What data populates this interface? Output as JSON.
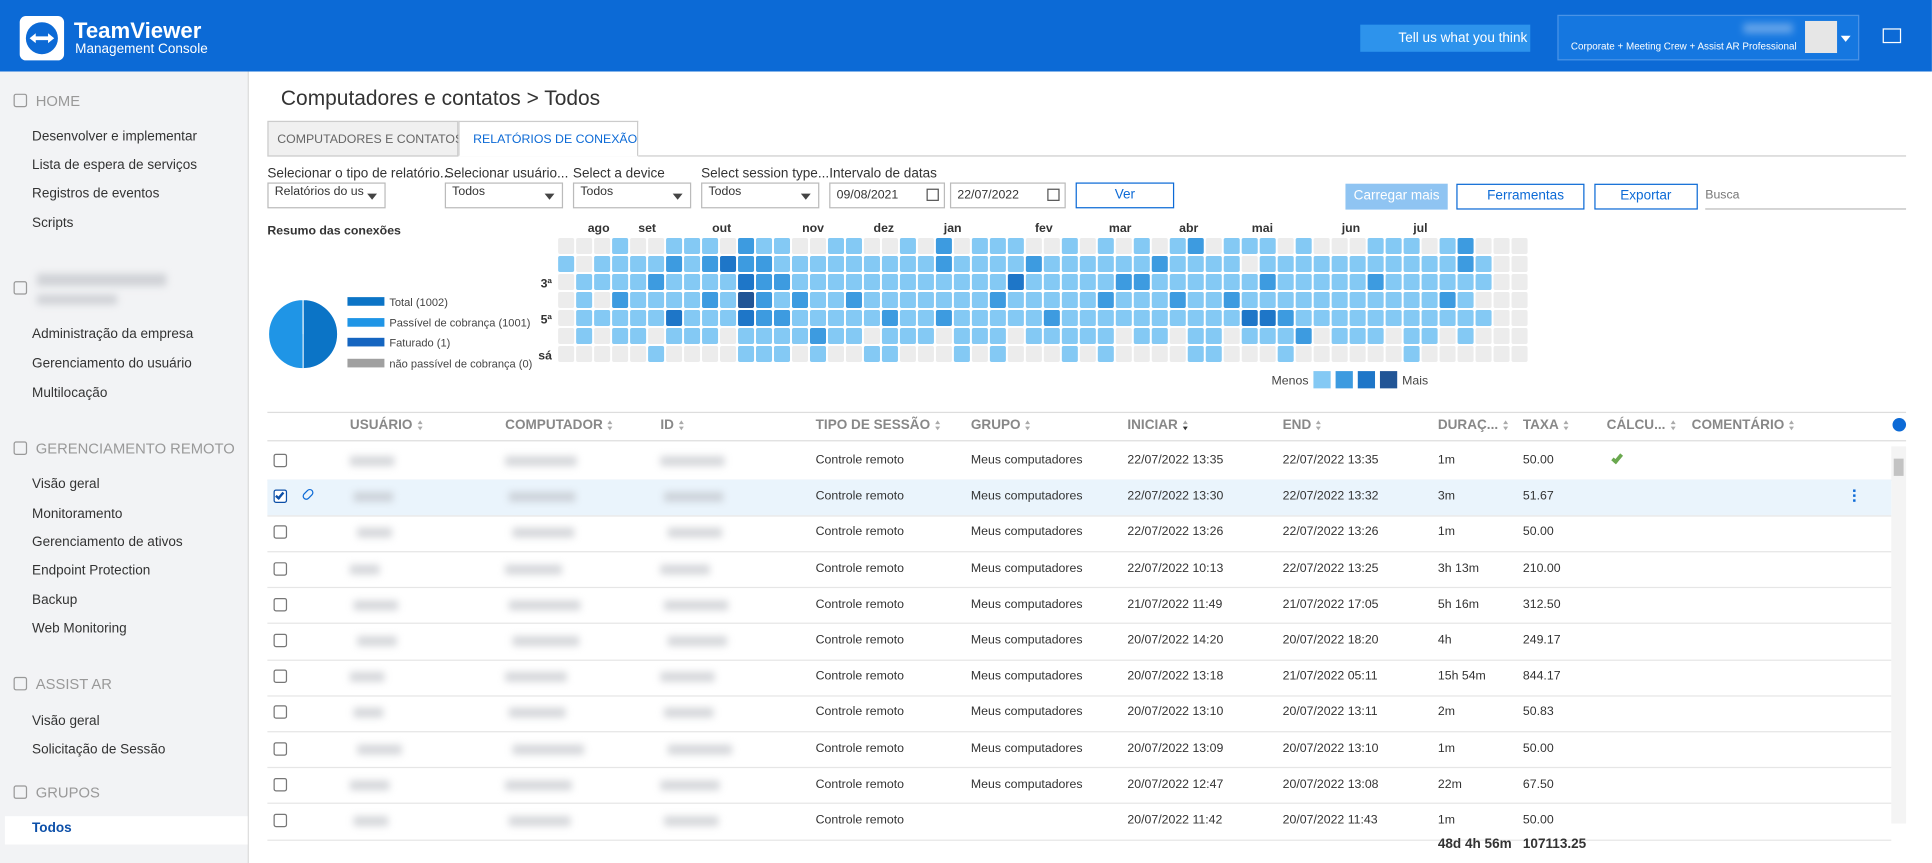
{
  "header": {
    "brand": "TeamViewer",
    "subtitle": "Management Console",
    "feedback": "Tell us what you think",
    "license": "Corporate + Meeting Crew + Assist AR Professional"
  },
  "sidebar": {
    "sections": [
      {
        "title": "HOME",
        "items": [
          "Desenvolver e implementar",
          "Lista de espera de serviços",
          "Registros de eventos",
          "Scripts"
        ]
      },
      {
        "items": [
          "Administração da empresa",
          "Gerenciamento do usuário",
          "Multilocação"
        ]
      },
      {
        "title": "GERENCIAMENTO REMOTO",
        "items": [
          "Visão geral",
          "Monitoramento",
          "Gerenciamento de ativos",
          "Endpoint Protection",
          "Backup",
          "Web Monitoring"
        ]
      },
      {
        "title": "ASSIST AR",
        "items": [
          "Visão geral",
          "Solicitação de Sessão"
        ]
      },
      {
        "title": "GRUPOS",
        "items": [
          "Todos"
        ]
      }
    ]
  },
  "breadcrumb": "Computadores e contatos > Todos",
  "tabs": [
    "COMPUTADORES E CONTATOS",
    "RELATÓRIOS DE CONEXÃO"
  ],
  "filters": [
    {
      "label": "Selecionar o tipo de relatório...",
      "value": "Relatórios do us"
    },
    {
      "label": "Selecionar usuário...",
      "value": "Todos"
    },
    {
      "label": "Select a device",
      "value": "Todos"
    },
    {
      "label": "Select session type...",
      "value": "Todos"
    }
  ],
  "date_range": {
    "label": "Intervalo de datas",
    "from": "09/08/2021",
    "to": "22/07/2022"
  },
  "buttons": {
    "view": "Ver",
    "load_more": "Carregar mais",
    "tools": "Ferramentas",
    "export": "Exportar",
    "search": "Busca"
  },
  "summary_title": "Resumo das conexões",
  "chart_data": [
    {
      "type": "pie",
      "categories": [
        "Total (1002)",
        "Passível de cobrança (1001)",
        "Faturado (1)",
        "não passível de cobrança (0)"
      ],
      "values": [
        1002,
        1001,
        1,
        0
      ],
      "colors": [
        "#0b74c6",
        "#1f95e6",
        "#1565c0",
        "#a0a0a0"
      ]
    },
    {
      "type": "heatmap",
      "categories": [
        "ago",
        "set",
        "out",
        "nov",
        "dez",
        "jan",
        "fev",
        "mar",
        "abr",
        "mai",
        "jun",
        "jul"
      ],
      "y_categories": [
        null,
        null,
        "3ª",
        null,
        "5ª",
        null,
        "sá"
      ],
      "colors": [
        "#ececec",
        "#84c9f4",
        "#3d9be0",
        "#1e76c8",
        "#215596"
      ],
      "legend": {
        "low": "Menos",
        "high": "Mais"
      },
      "values": [
        [
          0,
          0,
          0,
          1,
          0,
          0,
          1,
          1,
          1,
          0,
          2,
          1,
          1,
          0,
          0,
          1,
          1,
          0,
          0,
          1,
          0,
          2,
          0,
          1,
          1,
          1,
          0,
          0,
          1,
          0,
          1,
          0,
          1,
          0,
          1,
          2,
          0,
          1,
          1,
          1,
          0,
          1,
          0,
          0,
          0,
          1,
          1,
          1,
          0,
          1,
          2,
          0,
          0,
          0
        ],
        [
          1,
          0,
          1,
          1,
          1,
          1,
          2,
          1,
          2,
          3,
          2,
          2,
          1,
          1,
          1,
          1,
          1,
          1,
          1,
          1,
          1,
          2,
          1,
          1,
          1,
          1,
          2,
          1,
          1,
          1,
          1,
          1,
          1,
          2,
          1,
          1,
          1,
          1,
          0,
          1,
          1,
          1,
          1,
          1,
          1,
          1,
          1,
          1,
          1,
          1,
          2,
          1,
          0,
          0
        ],
        [
          0,
          1,
          1,
          1,
          1,
          2,
          1,
          1,
          1,
          1,
          3,
          2,
          2,
          1,
          1,
          1,
          1,
          1,
          1,
          1,
          1,
          1,
          1,
          1,
          1,
          3,
          1,
          1,
          1,
          1,
          1,
          2,
          2,
          1,
          1,
          1,
          1,
          1,
          1,
          2,
          1,
          1,
          1,
          1,
          1,
          2,
          1,
          1,
          1,
          1,
          1,
          1,
          0,
          0
        ],
        [
          0,
          1,
          0,
          2,
          1,
          1,
          1,
          1,
          2,
          1,
          4,
          2,
          1,
          2,
          1,
          1,
          2,
          1,
          1,
          1,
          1,
          1,
          1,
          1,
          2,
          1,
          1,
          1,
          1,
          1,
          2,
          1,
          1,
          1,
          2,
          1,
          1,
          2,
          1,
          1,
          1,
          1,
          1,
          1,
          1,
          1,
          1,
          1,
          1,
          2,
          1,
          0,
          0,
          0
        ],
        [
          0,
          1,
          1,
          1,
          1,
          1,
          3,
          1,
          1,
          1,
          3,
          2,
          2,
          1,
          1,
          1,
          1,
          1,
          2,
          1,
          1,
          2,
          1,
          1,
          1,
          1,
          1,
          2,
          1,
          1,
          1,
          1,
          1,
          1,
          1,
          1,
          1,
          1,
          3,
          3,
          2,
          1,
          1,
          1,
          1,
          1,
          1,
          1,
          1,
          1,
          1,
          1,
          0,
          0
        ],
        [
          0,
          1,
          0,
          1,
          1,
          0,
          1,
          1,
          1,
          0,
          1,
          1,
          1,
          1,
          2,
          1,
          1,
          0,
          1,
          1,
          1,
          0,
          1,
          1,
          1,
          0,
          1,
          1,
          1,
          1,
          1,
          0,
          1,
          1,
          0,
          1,
          1,
          0,
          1,
          1,
          1,
          2,
          0,
          1,
          1,
          1,
          0,
          1,
          1,
          0,
          1,
          0,
          0,
          0
        ],
        [
          0,
          0,
          0,
          0,
          0,
          1,
          0,
          0,
          0,
          0,
          1,
          1,
          1,
          0,
          1,
          0,
          0,
          1,
          1,
          0,
          0,
          0,
          1,
          0,
          1,
          0,
          0,
          0,
          1,
          0,
          1,
          0,
          0,
          0,
          0,
          1,
          1,
          0,
          0,
          0,
          1,
          0,
          0,
          0,
          0,
          0,
          0,
          1,
          0,
          0,
          0,
          0,
          0,
          0
        ]
      ]
    }
  ],
  "table": {
    "columns": [
      "USUÁRIO",
      "COMPUTADOR",
      "ID",
      "TIPO DE SESSÃO",
      "GRUPO",
      "INICIAR",
      "END",
      "DURAÇ...",
      "TAXA",
      "CÁLCU...",
      "COMENTÁRIO"
    ],
    "rows": [
      {
        "tipo": "Controle remoto",
        "grupo": "Meus computadores",
        "iniciar": "22/07/2022 13:35",
        "end": "22/07/2022 13:35",
        "duracao": "1m",
        "taxa": "50.00",
        "calculo": true
      },
      {
        "tipo": "Controle remoto",
        "grupo": "Meus computadores",
        "iniciar": "22/07/2022 13:30",
        "end": "22/07/2022 13:32",
        "duracao": "3m",
        "taxa": "51.67",
        "selected": true
      },
      {
        "tipo": "Controle remoto",
        "grupo": "Meus computadores",
        "iniciar": "22/07/2022 13:26",
        "end": "22/07/2022 13:26",
        "duracao": "1m",
        "taxa": "50.00"
      },
      {
        "tipo": "Controle remoto",
        "grupo": "Meus computadores",
        "iniciar": "22/07/2022 10:13",
        "end": "22/07/2022 13:25",
        "duracao": "3h 13m",
        "taxa": "210.00"
      },
      {
        "tipo": "Controle remoto",
        "grupo": "Meus computadores",
        "iniciar": "21/07/2022 11:49",
        "end": "21/07/2022 17:05",
        "duracao": "5h 16m",
        "taxa": "312.50"
      },
      {
        "tipo": "Controle remoto",
        "grupo": "Meus computadores",
        "iniciar": "20/07/2022 14:20",
        "end": "20/07/2022 18:20",
        "duracao": "4h",
        "taxa": "249.17"
      },
      {
        "tipo": "Controle remoto",
        "grupo": "Meus computadores",
        "iniciar": "20/07/2022 13:18",
        "end": "21/07/2022 05:11",
        "duracao": "15h 54m",
        "taxa": "844.17"
      },
      {
        "tipo": "Controle remoto",
        "grupo": "Meus computadores",
        "iniciar": "20/07/2022 13:10",
        "end": "20/07/2022 13:11",
        "duracao": "2m",
        "taxa": "50.83"
      },
      {
        "tipo": "Controle remoto",
        "grupo": "Meus computadores",
        "iniciar": "20/07/2022 13:09",
        "end": "20/07/2022 13:10",
        "duracao": "1m",
        "taxa": "50.00"
      },
      {
        "tipo": "Controle remoto",
        "grupo": "Meus computadores",
        "iniciar": "20/07/2022 12:47",
        "end": "20/07/2022 13:08",
        "duracao": "22m",
        "taxa": "67.50"
      },
      {
        "tipo": "Controle remoto",
        "iniciar": "20/07/2022 11:42",
        "end": "20/07/2022 11:43",
        "duracao": "1m",
        "taxa": "50.00"
      }
    ],
    "totals": {
      "duracao": "48d 4h 56m",
      "taxa": "107113.25"
    }
  }
}
